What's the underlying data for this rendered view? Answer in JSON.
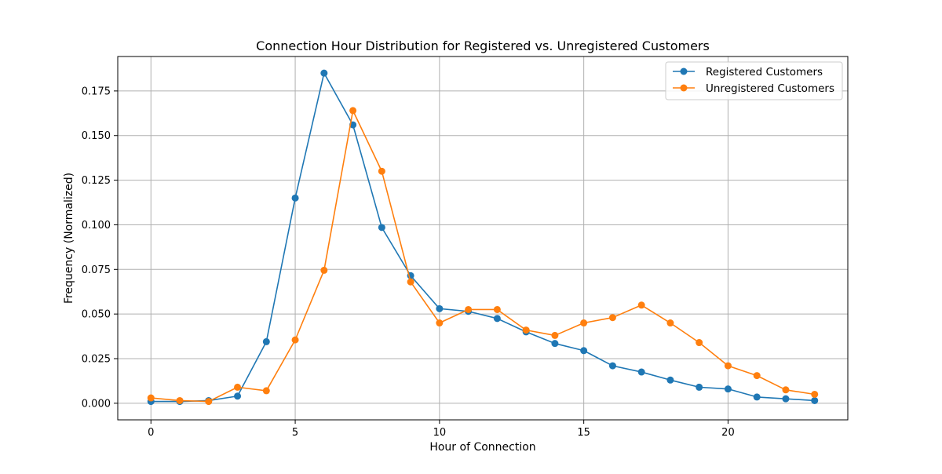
{
  "chart_data": {
    "type": "line",
    "title": "Connection Hour Distribution for Registered vs. Unregistered Customers",
    "xlabel": "Hour of Connection",
    "ylabel": "Frequency (Normalized)",
    "xlim": [
      -1.15,
      24.15
    ],
    "ylim": [
      -0.0093,
      0.1943
    ],
    "x_ticks": [
      0,
      5,
      10,
      15,
      20
    ],
    "x_tick_labels": [
      "0",
      "5",
      "10",
      "15",
      "20"
    ],
    "y_ticks": [
      0.0,
      0.025,
      0.05,
      0.075,
      0.1,
      0.125,
      0.15,
      0.175
    ],
    "y_tick_labels": [
      "0.000",
      "0.025",
      "0.050",
      "0.075",
      "0.100",
      "0.125",
      "0.150",
      "0.175"
    ],
    "grid": true,
    "legend_position": "upper-right",
    "x": [
      0,
      1,
      2,
      3,
      4,
      5,
      6,
      7,
      8,
      9,
      10,
      11,
      12,
      13,
      14,
      15,
      16,
      17,
      18,
      19,
      20,
      21,
      22,
      23
    ],
    "series": [
      {
        "name": "Registered Customers",
        "color": "#1f77b4",
        "values": [
          0.001,
          0.001,
          0.0015,
          0.004,
          0.0345,
          0.115,
          0.185,
          0.156,
          0.0985,
          0.0715,
          0.053,
          0.0515,
          0.0475,
          0.04,
          0.0335,
          0.0295,
          0.021,
          0.0175,
          0.013,
          0.009,
          0.008,
          0.0035,
          0.0025,
          0.0015
        ]
      },
      {
        "name": "Unregistered Customers",
        "color": "#ff7f0e",
        "values": [
          0.003,
          0.0015,
          0.001,
          0.009,
          0.007,
          0.0355,
          0.0745,
          0.164,
          0.13,
          0.068,
          0.045,
          0.0525,
          0.0525,
          0.041,
          0.038,
          0.045,
          0.048,
          0.055,
          0.045,
          0.034,
          0.021,
          0.0155,
          0.0075,
          0.005
        ]
      }
    ]
  }
}
